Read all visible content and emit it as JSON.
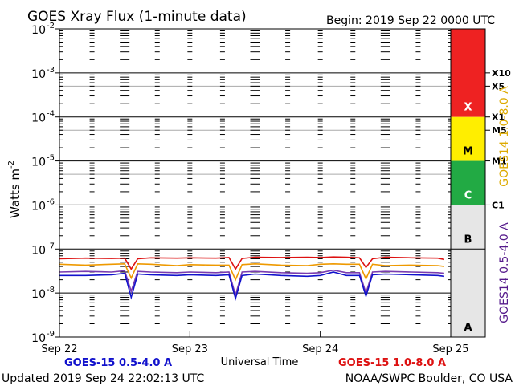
{
  "chart_data": {
    "type": "line",
    "title": "GOES Xray Flux (1-minute data)",
    "begin_label": "Begin:  2019 Sep 22 0000 UTC",
    "ylabel_base": "Watts  m",
    "ylabel_exp": "-2",
    "xlabel": "Universal Time",
    "yscale": "log",
    "ylim": [
      1e-09,
      0.01
    ],
    "xlim": [
      0,
      3
    ],
    "y_ticks": [
      {
        "exp": -2,
        "base": "10",
        "sup": "-2"
      },
      {
        "exp": -3,
        "base": "10",
        "sup": "-3"
      },
      {
        "exp": -4,
        "base": "10",
        "sup": "-4"
      },
      {
        "exp": -5,
        "base": "10",
        "sup": "-5"
      },
      {
        "exp": -6,
        "base": "10",
        "sup": "-6"
      },
      {
        "exp": -7,
        "base": "10",
        "sup": "-7"
      },
      {
        "exp": -8,
        "base": "10",
        "sup": "-8"
      },
      {
        "exp": -9,
        "base": "10",
        "sup": "-9"
      }
    ],
    "x_ticks": [
      {
        "day": 0,
        "label": "Sep 22"
      },
      {
        "day": 1,
        "label": "Sep 23"
      },
      {
        "day": 2,
        "label": "Sep 24"
      },
      {
        "day": 3,
        "label": "Sep 25"
      }
    ],
    "flare_classes": [
      {
        "label": "X",
        "min": 0.0001,
        "max": 0.01,
        "color": "#ee2222"
      },
      {
        "label": "M",
        "min": 1e-05,
        "max": 0.0001,
        "color": "#ffee00"
      },
      {
        "label": "C",
        "min": 1e-06,
        "max": 1e-05,
        "color": "#22aa44"
      },
      {
        "label": "B",
        "min": 1e-07,
        "max": 1e-06,
        "color": "#e6e6e6"
      },
      {
        "label": "A",
        "min": 1e-09,
        "max": 1e-07,
        "color": "#e6e6e6"
      }
    ],
    "flare_levels": [
      {
        "label": "X10",
        "value": 0.001
      },
      {
        "label": "X5",
        "value": 0.0005
      },
      {
        "label": "X1",
        "value": 0.0001
      },
      {
        "label": "M5",
        "value": 5e-05
      },
      {
        "label": "M1",
        "value": 1e-05
      },
      {
        "label": "C1",
        "value": 1e-06
      }
    ],
    "right_labels": [
      {
        "text": "GOES14 0.5-4.0 A",
        "color": "#551a8b"
      },
      {
        "text": "GOES14 1.0-8.0 A",
        "color": "#ddaa00"
      }
    ],
    "series": [
      {
        "name": "GOES-15 1.0-8.0 A",
        "color": "#dd1111",
        "x": [
          0.0,
          0.2,
          0.4,
          0.5,
          0.55,
          0.6,
          0.7,
          0.9,
          1.0,
          1.2,
          1.3,
          1.35,
          1.4,
          1.5,
          1.7,
          1.9,
          2.0,
          2.1,
          2.2,
          2.3,
          2.35,
          2.4,
          2.5,
          2.7,
          2.9,
          2.95
        ],
        "y": [
          6e-08,
          6.2e-08,
          6.1e-08,
          6.2e-08,
          3.5e-08,
          6e-08,
          6.3e-08,
          6.2e-08,
          6.3e-08,
          6.2e-08,
          6.4e-08,
          3.5e-08,
          6.1e-08,
          6.5e-08,
          6.4e-08,
          6.5e-08,
          6.4e-08,
          6.6e-08,
          6.5e-08,
          6.3e-08,
          3.8e-08,
          6e-08,
          6.5e-08,
          6.3e-08,
          6.2e-08,
          5.8e-08
        ]
      },
      {
        "name": "GOES14 1.0-8.0 A",
        "color": "#ee9900",
        "x": [
          0.0,
          0.2,
          0.4,
          0.5,
          0.55,
          0.6,
          0.7,
          0.9,
          1.0,
          1.2,
          1.3,
          1.35,
          1.4,
          1.5,
          1.7,
          1.9,
          2.0,
          2.1,
          2.2,
          2.3,
          2.35,
          2.4,
          2.5,
          2.7,
          2.9,
          2.95
        ],
        "y": [
          4.5e-08,
          4.3e-08,
          4.5e-08,
          4.6e-08,
          2.2e-08,
          4.6e-08,
          4.5e-08,
          4.2e-08,
          4.4e-08,
          4.3e-08,
          4.3e-08,
          2e-08,
          4.4e-08,
          4.6e-08,
          4.3e-08,
          4.2e-08,
          4.5e-08,
          4.6e-08,
          4.5e-08,
          4.5e-08,
          2.1e-08,
          4.5e-08,
          4.2e-08,
          4.3e-08,
          4.2e-08,
          4e-08
        ]
      },
      {
        "name": "GOES14 0.5-4.0 A",
        "color": "#7a3cb0",
        "x": [
          0.0,
          0.2,
          0.4,
          0.5,
          0.55,
          0.6,
          0.7,
          0.9,
          1.0,
          1.2,
          1.3,
          1.35,
          1.4,
          1.5,
          1.7,
          1.9,
          2.0,
          2.1,
          2.2,
          2.3,
          2.35,
          2.4,
          2.5,
          2.7,
          2.9,
          2.95
        ],
        "y": [
          3e-08,
          3.1e-08,
          3e-08,
          3.2e-08,
          1.1e-08,
          3.1e-08,
          3e-08,
          2.9e-08,
          3e-08,
          2.9e-08,
          3e-08,
          9e-09,
          3e-08,
          3.1e-08,
          2.9e-08,
          2.8e-08,
          2.9e-08,
          3.3e-08,
          2.9e-08,
          2.9e-08,
          1e-08,
          3e-08,
          3.1e-08,
          3e-08,
          2.9e-08,
          2.8e-08
        ]
      },
      {
        "name": "GOES-15 0.5-4.0 A",
        "color": "#1111cc",
        "x": [
          0.0,
          0.2,
          0.4,
          0.5,
          0.55,
          0.6,
          0.7,
          0.9,
          1.0,
          1.2,
          1.3,
          1.35,
          1.4,
          1.5,
          1.7,
          1.9,
          2.0,
          2.1,
          2.2,
          2.3,
          2.35,
          2.4,
          2.5,
          2.7,
          2.9,
          2.95
        ],
        "y": [
          2.5e-08,
          2.5e-08,
          2.6e-08,
          2.8e-08,
          8e-09,
          2.7e-08,
          2.6e-08,
          2.5e-08,
          2.6e-08,
          2.5e-08,
          2.6e-08,
          7.5e-09,
          2.5e-08,
          2.7e-08,
          2.5e-08,
          2.4e-08,
          2.5e-08,
          3e-08,
          2.5e-08,
          2.5e-08,
          8.5e-09,
          2.6e-08,
          2.7e-08,
          2.6e-08,
          2.5e-08,
          2.4e-08
        ]
      }
    ],
    "legend": [
      {
        "text": "GOES-15 0.5-4.0 A",
        "color": "#1111cc"
      },
      {
        "text": "GOES-15 1.0-8.0 A",
        "color": "#dd1111"
      }
    ],
    "footer_left": "Updated 2019 Sep 24 22:02:13 UTC",
    "footer_right": "NOAA/SWPC Boulder, CO USA"
  }
}
